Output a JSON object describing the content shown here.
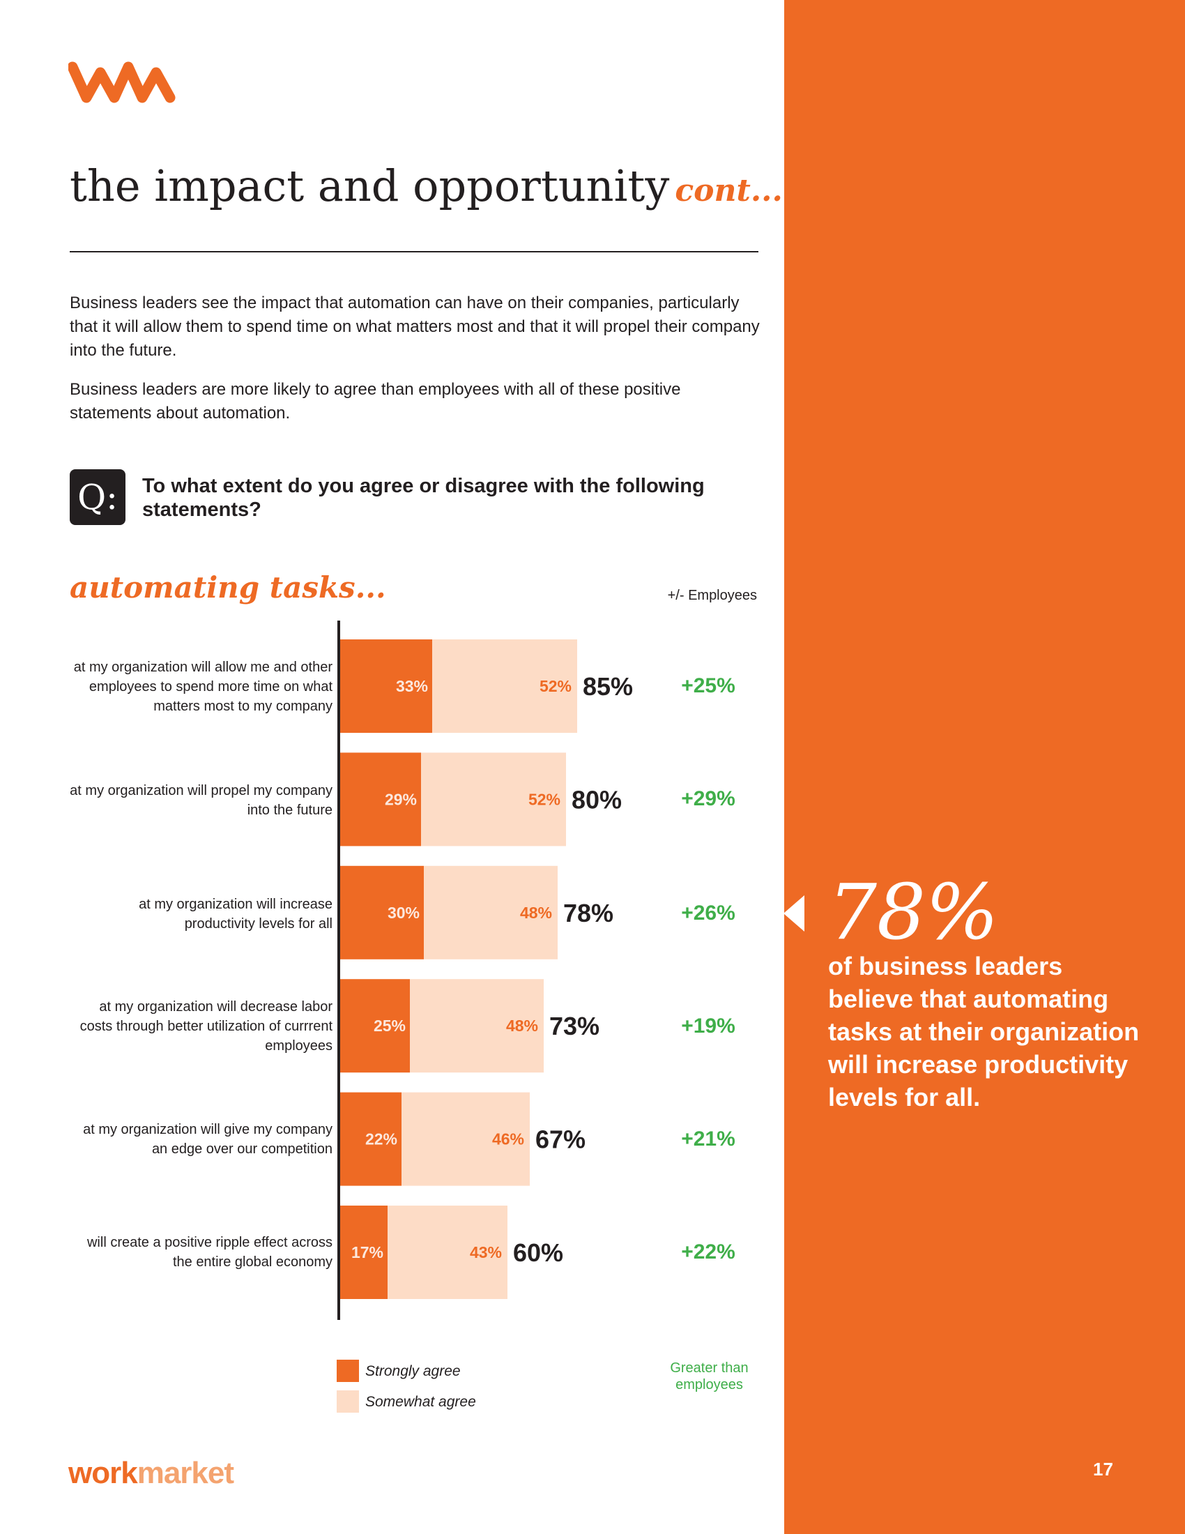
{
  "title": {
    "main": "the impact and opportunity",
    "cont": "cont..."
  },
  "paragraphs": [
    "Business leaders see the impact that automation can have on their companies, particularly that it will allow them to spend time on what matters most and that it will propel their company into the future.",
    "Business leaders are more likely to agree than employees with all of these positive statements about automation."
  ],
  "question": {
    "badge": "Q:",
    "text": "To what extent do you agree or disagree with the following statements?"
  },
  "section_heading": "automating tasks...",
  "employees_header": "+/- Employees",
  "rows": [
    {
      "label": "at my organization will allow me and other employees to spend more time on what matters most to my company",
      "delta": "+25%"
    },
    {
      "label": "at my organization will propel my company into the future",
      "delta": "+29%"
    },
    {
      "label": "at my organization will increase productivity levels for all",
      "delta": "+26%"
    },
    {
      "label": "at my organization will decrease labor costs through better utilization of currrent employees",
      "delta": "+19%"
    },
    {
      "label": "at my organization will give my company an edge over our competition",
      "delta": "+21%"
    },
    {
      "label": "will create a positive ripple effect across the entire global economy",
      "delta": "+22%"
    }
  ],
  "legend": {
    "strong": "Strongly agree",
    "somewhat": "Somewhat agree"
  },
  "greater_note": "Greater than employees",
  "callout": {
    "stat": "78%",
    "text": "of business leaders believe that automating tasks at their organization will increase productivity levels for all."
  },
  "footer": {
    "brand_a": "work",
    "brand_b": "market",
    "page_number": "17"
  },
  "colors": {
    "accent": "#ee6a24",
    "light": "#fddcc6",
    "green": "#3fae49",
    "dark": "#231f20"
  },
  "chart_data": {
    "type": "bar",
    "orientation": "horizontal",
    "stacked": true,
    "categories": [
      "at my organization will allow me and other employees to spend more time on what matters most to my company",
      "at my organization will propel my company into the future",
      "at my organization will increase productivity levels for all",
      "at my organization will decrease labor costs through better utilization of currrent employees",
      "at my organization will give my company an edge over our competition",
      "will create a positive ripple effect across the entire global economy"
    ],
    "series": [
      {
        "name": "Strongly agree",
        "values": [
          33,
          29,
          30,
          25,
          22,
          17
        ],
        "labels": [
          "33%",
          "29%",
          "30%",
          "25%",
          "22%",
          "17%"
        ]
      },
      {
        "name": "Somewhat agree",
        "values": [
          52,
          52,
          48,
          48,
          46,
          43
        ],
        "labels": [
          "52%",
          "52%",
          "48%",
          "48%",
          "46%",
          "43%"
        ]
      }
    ],
    "totals": [
      85,
      80,
      78,
      73,
      67,
      60
    ],
    "total_labels": [
      "85%",
      "80%",
      "78%",
      "73%",
      "67%",
      "60%"
    ],
    "difference_vs_employees": [
      "+25%",
      "+29%",
      "+26%",
      "+19%",
      "+21%",
      "+22%"
    ],
    "title": "automating tasks...",
    "xlabel": "",
    "ylabel": "",
    "xlim": [
      0,
      100
    ]
  }
}
